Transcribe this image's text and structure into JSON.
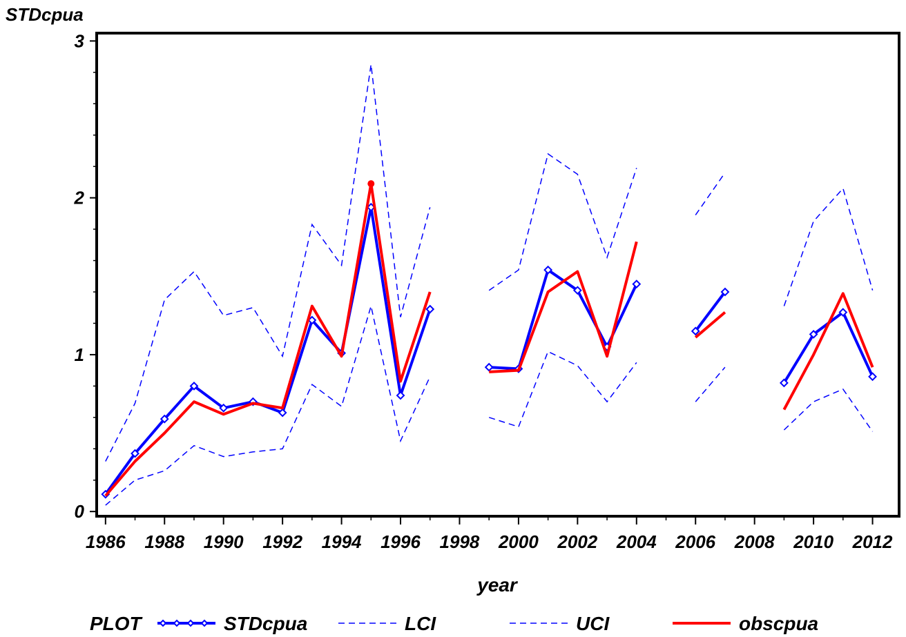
{
  "chart_data": {
    "type": "line",
    "ylabel": "STDcpua",
    "xlabel": "year",
    "legend_title": "PLOT",
    "legend_position": "bottom",
    "xlim": [
      1985.7,
      2012.9
    ],
    "ylim": [
      -0.03,
      3.05
    ],
    "x_ticks": [
      1986,
      1988,
      1990,
      1992,
      1994,
      1996,
      1998,
      2000,
      2002,
      2004,
      2006,
      2008,
      2010,
      2012
    ],
    "y_ticks": [
      0,
      1,
      2,
      3
    ],
    "x_minor_step": 1,
    "y_minor_step": 0.2,
    "grid": false,
    "x": [
      1986,
      1987,
      1988,
      1989,
      1990,
      1991,
      1992,
      1993,
      1994,
      1995,
      1996,
      1997,
      1998,
      1999,
      2000,
      2001,
      2002,
      2003,
      2004,
      2005,
      2006,
      2007,
      2008,
      2009,
      2010,
      2011,
      2012
    ],
    "series": [
      {
        "name": "STDcpua",
        "color": "#0000ff",
        "style": "thick-diamond",
        "values": [
          0.11,
          0.37,
          0.59,
          0.8,
          0.66,
          0.7,
          0.63,
          1.22,
          1.01,
          1.94,
          0.74,
          1.29,
          null,
          0.92,
          0.91,
          1.54,
          1.41,
          1.05,
          1.45,
          null,
          1.15,
          1.4,
          null,
          0.82,
          1.13,
          1.27,
          0.86
        ]
      },
      {
        "name": "LCI",
        "color": "#0000ff",
        "style": "dashed",
        "values": [
          0.04,
          0.2,
          0.26,
          0.42,
          0.35,
          0.38,
          0.4,
          0.81,
          0.67,
          1.31,
          0.45,
          0.86,
          null,
          0.6,
          0.54,
          1.02,
          0.93,
          0.7,
          0.95,
          null,
          0.7,
          0.92,
          null,
          0.52,
          0.7,
          0.78,
          0.51
        ]
      },
      {
        "name": "UCI",
        "color": "#0000ff",
        "style": "dashed",
        "values": [
          0.32,
          0.69,
          1.35,
          1.53,
          1.25,
          1.3,
          0.99,
          1.83,
          1.57,
          2.85,
          1.24,
          1.94,
          null,
          1.41,
          1.54,
          2.28,
          2.15,
          1.62,
          2.19,
          null,
          1.89,
          2.16,
          null,
          1.31,
          1.85,
          2.06,
          1.41
        ]
      },
      {
        "name": "obscpua",
        "color": "#ff0000",
        "style": "thick",
        "values": [
          0.1,
          0.32,
          0.5,
          0.7,
          0.62,
          0.69,
          0.66,
          1.31,
          0.99,
          2.09,
          0.83,
          1.4,
          null,
          0.89,
          0.9,
          1.4,
          1.53,
          0.99,
          1.72,
          null,
          1.11,
          1.27,
          null,
          0.65,
          1.0,
          1.39,
          0.92
        ]
      }
    ]
  }
}
